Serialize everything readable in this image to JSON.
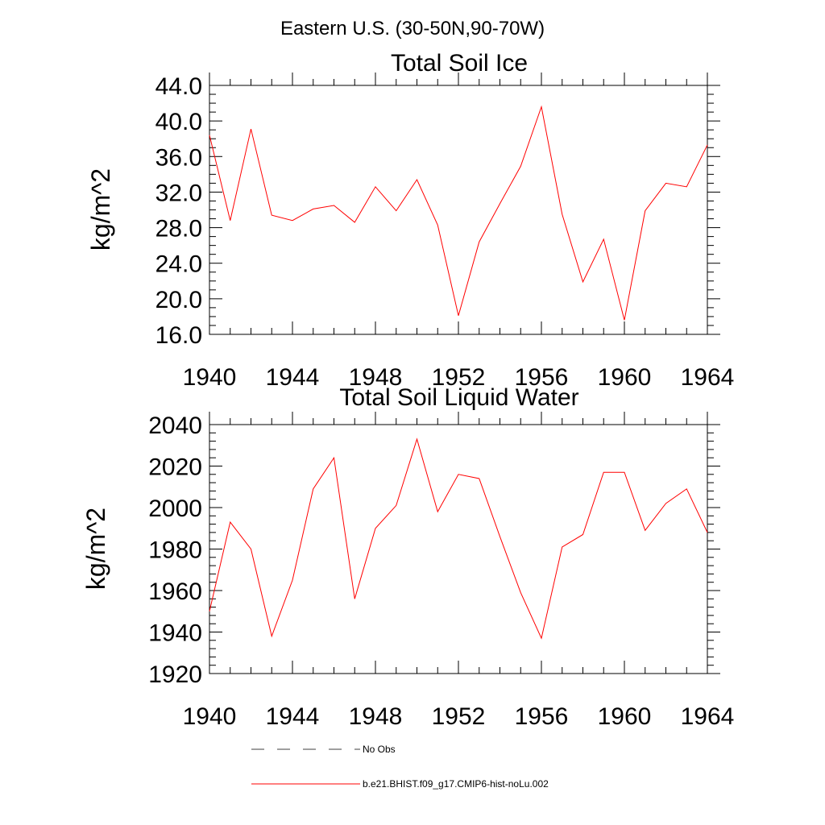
{
  "figure": {
    "title": "Eastern U.S. (30-50N,90-70W)"
  },
  "chart_data": [
    {
      "type": "line",
      "title": "Total Soil Ice",
      "xlabel": "",
      "ylabel": "kg/m^2",
      "xlim": [
        1940,
        1964
      ],
      "ylim": [
        16,
        44
      ],
      "x_ticks": [
        1940,
        1944,
        1948,
        1952,
        1956,
        1960,
        1964
      ],
      "x_tick_labels": [
        "1940",
        "1944",
        "1948",
        "1952",
        "1956",
        "1960",
        "1964"
      ],
      "y_ticks": [
        16,
        20,
        24,
        28,
        32,
        36,
        40,
        44
      ],
      "y_tick_labels": [
        "16.0",
        "20.0",
        "24.0",
        "28.0",
        "32.0",
        "36.0",
        "40.0",
        "44.0"
      ],
      "x_minor_step": 1,
      "y_minor_step": 1,
      "grid": false,
      "series": [
        {
          "name": "b.e21.BHIST.f09_g17.CMIP6-hist-noLu.002",
          "color": "#ff0000",
          "x": [
            1940,
            1941,
            1942,
            1943,
            1944,
            1945,
            1946,
            1947,
            1948,
            1949,
            1950,
            1951,
            1952,
            1953,
            1954,
            1955,
            1956,
            1957,
            1958,
            1959,
            1960,
            1961,
            1962,
            1963,
            1964
          ],
          "y": [
            38.4,
            28.8,
            39.1,
            29.4,
            28.8,
            30.1,
            30.5,
            28.6,
            32.6,
            29.9,
            33.4,
            28.3,
            18.1,
            26.4,
            30.7,
            34.9,
            41.6,
            29.5,
            21.9,
            26.7,
            17.6,
            29.9,
            33.0,
            32.6,
            37.3
          ]
        }
      ]
    },
    {
      "type": "line",
      "title": "Total Soil Liquid Water",
      "xlabel": "",
      "ylabel": "kg/m^2",
      "xlim": [
        1940,
        1964
      ],
      "ylim": [
        1920,
        2040
      ],
      "x_ticks": [
        1940,
        1944,
        1948,
        1952,
        1956,
        1960,
        1964
      ],
      "x_tick_labels": [
        "1940",
        "1944",
        "1948",
        "1952",
        "1956",
        "1960",
        "1964"
      ],
      "y_ticks": [
        1920,
        1940,
        1960,
        1980,
        2000,
        2020,
        2040
      ],
      "y_tick_labels": [
        "1920",
        "1940",
        "1960",
        "1980",
        "2000",
        "2020",
        "2040"
      ],
      "x_minor_step": 1,
      "y_minor_step": 4,
      "grid": false,
      "series": [
        {
          "name": "b.e21.BHIST.f09_g17.CMIP6-hist-noLu.002",
          "color": "#ff0000",
          "x": [
            1940,
            1941,
            1942,
            1943,
            1944,
            1945,
            1946,
            1947,
            1948,
            1949,
            1950,
            1951,
            1952,
            1953,
            1954,
            1955,
            1956,
            1957,
            1958,
            1959,
            1960,
            1961,
            1962,
            1963,
            1964
          ],
          "y": [
            1950,
            1993,
            1980,
            1938,
            1965,
            2009,
            2024,
            1956,
            1990,
            2001,
            2033,
            1998,
            2016,
            2014,
            1986,
            1959,
            1937,
            1981,
            1987,
            2017,
            2017,
            1989,
            2002,
            2009,
            1988
          ]
        }
      ]
    }
  ],
  "legend": {
    "placement": "bottom",
    "entries": [
      {
        "label": "No Obs",
        "style": "dashed",
        "color": "#000000"
      },
      {
        "label": "b.e21.BHIST.f09_g17.CMIP6-hist-noLu.002",
        "style": "solid",
        "color": "#ff0000"
      }
    ]
  }
}
